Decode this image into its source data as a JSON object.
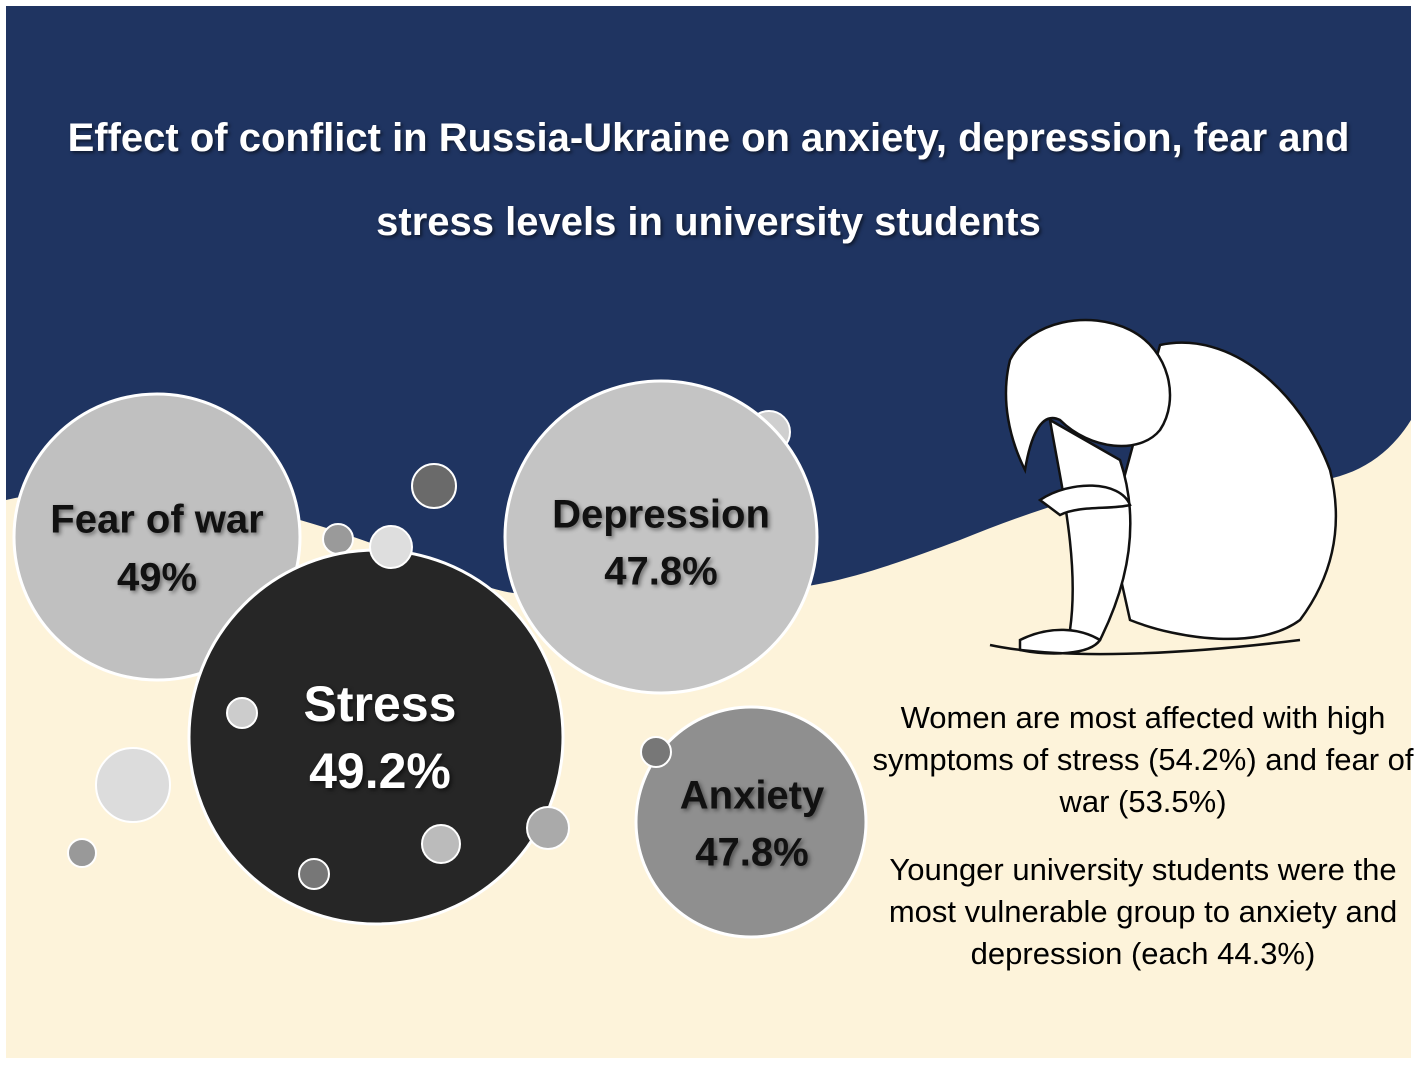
{
  "title": "Effect of conflict in Russia-Ukraine on anxiety, depression, fear and stress levels in university students",
  "bubbles": [
    {
      "label": "Fear of war",
      "value": "49%"
    },
    {
      "label": "Stress",
      "value": "49.2%"
    },
    {
      "label": "Depression",
      "value": "47.8%"
    },
    {
      "label": "Anxiety",
      "value": "47.8%"
    }
  ],
  "notes": [
    "Women are most affected with high symptoms of stress (54.2%) and fear of war (53.5%)",
    "Younger university students were the most vulnerable group to anxiety and depression (each 44.3%)"
  ]
}
